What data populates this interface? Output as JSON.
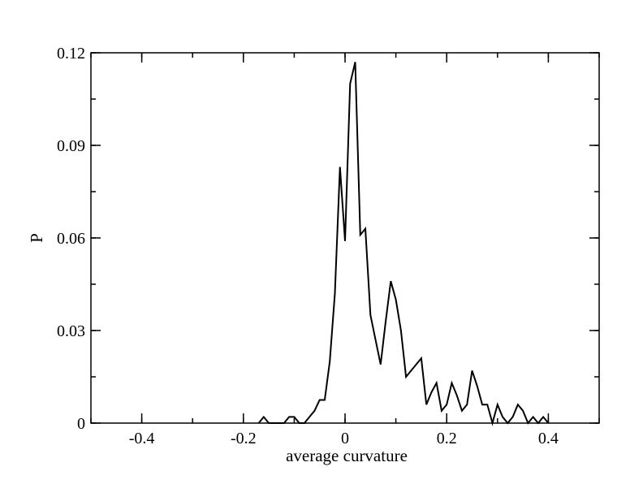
{
  "chart_data": {
    "type": "line",
    "title": "",
    "xlabel": "average curvature",
    "ylabel": "P",
    "xlim": [
      -0.5,
      0.5
    ],
    "ylim": [
      0,
      0.12
    ],
    "x_major_ticks": [
      -0.4,
      -0.2,
      0,
      0.2,
      0.4
    ],
    "x_tick_labels": [
      "-0.4",
      "-0.2",
      "0",
      "0.2",
      "0.4"
    ],
    "x_minor_step": 0.1,
    "y_major_ticks": [
      0,
      0.03,
      0.06,
      0.09,
      0.12
    ],
    "y_tick_labels": [
      "0",
      "0.03",
      "0.06",
      "0.09",
      "0.12"
    ],
    "y_minor_step": 0.015,
    "grid": false,
    "legend": "none",
    "series": [
      {
        "color": "#000000",
        "x": [
          -0.17,
          -0.16,
          -0.15,
          -0.12,
          -0.11,
          -0.1,
          -0.09,
          -0.08,
          -0.07,
          -0.06,
          -0.05,
          -0.04,
          -0.03,
          -0.02,
          -0.01,
          0.0,
          0.01,
          0.02,
          0.03,
          0.04,
          0.05,
          0.06,
          0.07,
          0.08,
          0.09,
          0.1,
          0.11,
          0.12,
          0.13,
          0.14,
          0.15,
          0.16,
          0.17,
          0.18,
          0.19,
          0.2,
          0.21,
          0.22,
          0.23,
          0.24,
          0.25,
          0.26,
          0.27,
          0.28,
          0.29,
          0.3,
          0.31,
          0.32,
          0.33,
          0.34,
          0.35,
          0.36,
          0.37,
          0.38,
          0.39,
          0.4
        ],
        "y": [
          0,
          0.002,
          0,
          0,
          0.002,
          0.002,
          0,
          0,
          0.002,
          0.004,
          0.0075,
          0.0075,
          0.02,
          0.042,
          0.083,
          0.059,
          0.11,
          0.117,
          0.061,
          0.063,
          0.035,
          0.027,
          0.019,
          0.033,
          0.046,
          0.04,
          0.03,
          0.015,
          0.017,
          0.019,
          0.021,
          0.006,
          0.01,
          0.013,
          0.004,
          0.006,
          0.013,
          0.009,
          0.004,
          0.006,
          0.017,
          0.012,
          0.006,
          0.006,
          0,
          0.006,
          0.002,
          0,
          0.002,
          0.006,
          0.004,
          0,
          0.002,
          0,
          0.002,
          0
        ]
      }
    ]
  }
}
